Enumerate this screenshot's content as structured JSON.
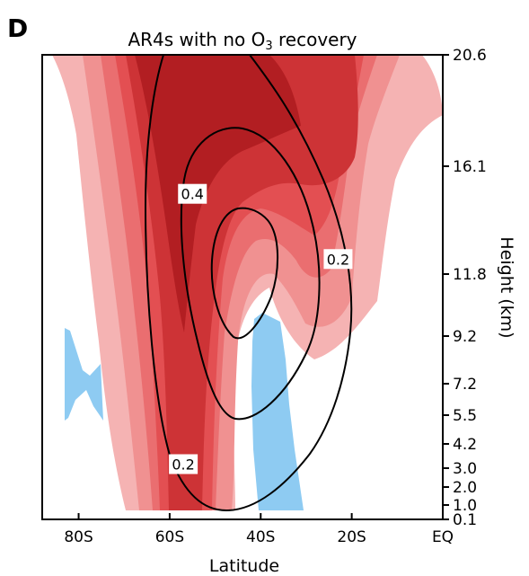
{
  "chart_data": {
    "type": "contour",
    "panel_label": "D",
    "title": "AR4s with no O",
    "title_sub": "3",
    "title_tail": " recovery",
    "xlabel": "Latitude",
    "ylabel": "Height (km)",
    "x_ticks": [
      {
        "value": -80,
        "label": "80S"
      },
      {
        "value": -60,
        "label": "60S"
      },
      {
        "value": -40,
        "label": "40S"
      },
      {
        "value": -20,
        "label": "20S"
      },
      {
        "value": 0,
        "label": "EQ"
      }
    ],
    "y_ticks": [
      {
        "label": "20.6"
      },
      {
        "label": "16.1"
      },
      {
        "label": "11.8"
      },
      {
        "label": "9.2"
      },
      {
        "label": "7.2"
      },
      {
        "label": "5.5"
      },
      {
        "label": "4.2"
      },
      {
        "label": "3.0"
      },
      {
        "label": "2.0"
      },
      {
        "label": "1.0"
      },
      {
        "label": "0.1"
      }
    ],
    "contour_labels": [
      {
        "text": "0.4",
        "lat": -55,
        "height_km": 15.0
      },
      {
        "text": "0.2",
        "lat": -23,
        "height_km": 12.4
      },
      {
        "text": "0.2",
        "lat": -57,
        "height_km": 3.2
      }
    ],
    "fill_colors": [
      "#f5b3b3",
      "#f09191",
      "#ea6e70",
      "#e34f52",
      "#cd3336",
      "#b21e22"
    ],
    "negative_color": "#8ecbf2",
    "line_color": "#000000"
  }
}
